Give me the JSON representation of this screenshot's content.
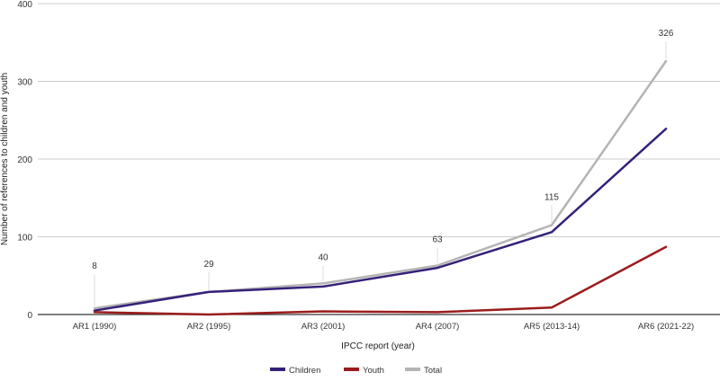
{
  "chart_data": {
    "type": "line",
    "title": "",
    "xlabel": "IPCC report (year)",
    "ylabel": "Number of references to children and youth",
    "categories": [
      "AR1 (1990)",
      "AR2 (1995)",
      "AR3 (2001)",
      "AR4 (2007)",
      "AR5 (2013-14)",
      "AR6 (2021-22)"
    ],
    "ylim": [
      0,
      400
    ],
    "yticks": [
      "0",
      "100",
      "200",
      "300",
      "400"
    ],
    "grid": true,
    "legend_position": "bottom",
    "series": [
      {
        "name": "Children",
        "color": "#36217a",
        "values": [
          5,
          29,
          36,
          60,
          106,
          239
        ]
      },
      {
        "name": "Youth",
        "color": "#9b1c1c",
        "values": [
          3,
          0,
          4,
          3,
          9,
          87
        ]
      },
      {
        "name": "Total",
        "color": "#b4b4b4",
        "values": [
          8,
          29,
          40,
          63,
          115,
          326
        ]
      }
    ],
    "data_labels": [
      "8",
      "29",
      "40",
      "63",
      "115",
      "326"
    ]
  }
}
